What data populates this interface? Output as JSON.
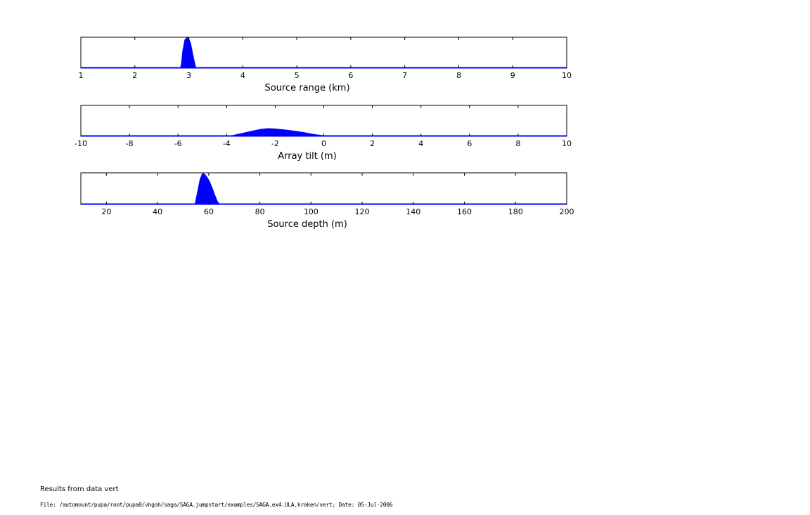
{
  "chart_data": [
    {
      "type": "area",
      "xlabel": "Source range (km)",
      "xlim": [
        1,
        10
      ],
      "xticks": [
        1,
        2,
        3,
        4,
        5,
        6,
        7,
        8,
        9,
        10
      ],
      "ylim": [
        0,
        1
      ],
      "grid": false,
      "color": "#0000ff",
      "x": [
        1,
        2.84,
        2.86,
        2.88,
        2.92,
        2.96,
        3.0,
        3.04,
        3.08,
        3.12,
        3.14,
        10
      ],
      "y": [
        0,
        0,
        0.2,
        0.55,
        0.92,
        1.0,
        0.98,
        0.8,
        0.45,
        0.12,
        0,
        0
      ]
    },
    {
      "type": "area",
      "xlabel": "Array tilt (m)",
      "xlim": [
        -10,
        10
      ],
      "xticks": [
        -10,
        -8,
        -6,
        -4,
        -2,
        0,
        2,
        4,
        6,
        8,
        10
      ],
      "ylim": [
        0,
        1
      ],
      "grid": false,
      "color": "#0000ff",
      "x": [
        -10,
        -4.2,
        -3.8,
        -3.4,
        -3.0,
        -2.6,
        -2.3,
        -2.0,
        -1.6,
        -1.2,
        -0.8,
        -0.4,
        0.0,
        0.5,
        10
      ],
      "y": [
        0,
        0,
        0.03,
        0.1,
        0.17,
        0.24,
        0.26,
        0.25,
        0.22,
        0.18,
        0.13,
        0.07,
        0.03,
        0,
        0
      ]
    },
    {
      "type": "area",
      "xlabel": "Source depth (m)",
      "xlim": [
        10,
        200
      ],
      "xticks": [
        20,
        40,
        60,
        80,
        100,
        120,
        140,
        160,
        180,
        200
      ],
      "ylim": [
        0,
        1
      ],
      "grid": false,
      "color": "#0000ff",
      "x": [
        10,
        54.5,
        55.5,
        56.5,
        57.5,
        58.5,
        59.5,
        60.5,
        61.5,
        62.5,
        63.5,
        64.5,
        200
      ],
      "y": [
        0,
        0,
        0.4,
        0.8,
        1.0,
        0.96,
        0.86,
        0.72,
        0.52,
        0.3,
        0.1,
        0,
        0
      ]
    }
  ],
  "footer": {
    "title": "Results from data vert",
    "file_line": "File: /automount/pupa/root/pupa0/vhgoh/saga/SAGA.jumpstart/examples/SAGA.ex4.ULA.kraken/vert; Date: 05-Jul-2006"
  }
}
